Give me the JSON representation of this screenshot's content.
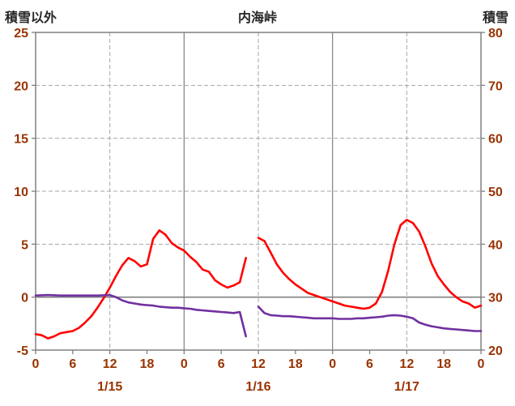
{
  "header": {
    "left": "積雪以外",
    "center": "内海峠",
    "right": "積雪"
  },
  "colors": {
    "red_series": "#FF0000",
    "purple_series": "#7030A0",
    "tick_label": "#993300",
    "grid": "#808080",
    "dashed_grid": "#a6a6a6",
    "title_text": "#262626"
  },
  "chart_data": {
    "type": "line",
    "title": "内海峠",
    "left_axis": {
      "label": "積雪以外",
      "min": -5,
      "max": 25,
      "ticks": [
        25,
        20,
        15,
        10,
        5,
        0,
        -5
      ],
      "zero_line": 0
    },
    "right_axis": {
      "label": "積雪",
      "min": 20,
      "max": 80,
      "ticks": [
        80,
        70,
        60,
        50,
        40,
        30,
        20
      ]
    },
    "x_axis": {
      "min": 0,
      "max": 72,
      "tick_interval": 6,
      "tick_labels": [
        "0",
        "6",
        "12",
        "18",
        "0",
        "6",
        "12",
        "18",
        "0",
        "6",
        "12",
        "18",
        "0"
      ],
      "solid_gridlines": [
        24,
        48
      ],
      "dashed_gridlines": [
        12,
        36,
        60
      ],
      "date_labels": [
        {
          "label": "1/15",
          "hour": 12
        },
        {
          "label": "1/16",
          "hour": 36
        },
        {
          "label": "1/17",
          "hour": 60
        }
      ]
    },
    "legend": "none",
    "grid": true,
    "series": [
      {
        "name": "積雪以外",
        "axis": "left",
        "color": "#FF0000",
        "segments": [
          [
            [
              0,
              -3.5
            ],
            [
              1,
              -3.6
            ],
            [
              2,
              -3.9
            ],
            [
              3,
              -3.7
            ],
            [
              4,
              -3.4
            ],
            [
              5,
              -3.3
            ],
            [
              6,
              -3.2
            ],
            [
              7,
              -2.9
            ],
            [
              8,
              -2.4
            ],
            [
              9,
              -1.8
            ],
            [
              10,
              -1.0
            ],
            [
              11,
              -0.1
            ],
            [
              12,
              0.9
            ],
            [
              13,
              2.0
            ],
            [
              14,
              3.0
            ],
            [
              15,
              3.7
            ],
            [
              16,
              3.4
            ],
            [
              17,
              2.9
            ],
            [
              18,
              3.1
            ],
            [
              19,
              5.5
            ],
            [
              20,
              6.3
            ],
            [
              21,
              5.9
            ],
            [
              22,
              5.1
            ],
            [
              23,
              4.7
            ],
            [
              24,
              4.4
            ],
            [
              25,
              3.8
            ],
            [
              26,
              3.3
            ],
            [
              27,
              2.6
            ],
            [
              28,
              2.4
            ],
            [
              29,
              1.6
            ],
            [
              30,
              1.2
            ],
            [
              31,
              0.9
            ],
            [
              32,
              1.1
            ],
            [
              33,
              1.4
            ],
            [
              34,
              3.7
            ]
          ],
          [
            [
              36,
              5.6
            ],
            [
              37,
              5.3
            ],
            [
              38,
              4.2
            ],
            [
              39,
              3.1
            ],
            [
              40,
              2.3
            ],
            [
              41,
              1.7
            ],
            [
              42,
              1.2
            ],
            [
              43,
              0.8
            ],
            [
              44,
              0.4
            ],
            [
              45,
              0.2
            ],
            [
              46,
              0.0
            ],
            [
              47,
              -0.2
            ],
            [
              48,
              -0.4
            ],
            [
              49,
              -0.6
            ],
            [
              50,
              -0.8
            ],
            [
              51,
              -0.9
            ],
            [
              52,
              -1.0
            ],
            [
              53,
              -1.1
            ],
            [
              54,
              -1.0
            ],
            [
              55,
              -0.6
            ],
            [
              56,
              0.5
            ],
            [
              57,
              2.5
            ],
            [
              58,
              5.0
            ],
            [
              59,
              6.8
            ],
            [
              60,
              7.3
            ],
            [
              61,
              7.0
            ],
            [
              62,
              6.2
            ],
            [
              63,
              4.8
            ],
            [
              64,
              3.2
            ],
            [
              65,
              2.0
            ],
            [
              66,
              1.2
            ],
            [
              67,
              0.5
            ],
            [
              68,
              0.0
            ],
            [
              69,
              -0.4
            ],
            [
              70,
              -0.6
            ],
            [
              71,
              -1.0
            ],
            [
              72,
              -0.8
            ]
          ]
        ]
      },
      {
        "name": "積雪",
        "axis": "right",
        "color": "#7030A0",
        "segments": [
          [
            [
              0,
              30.3
            ],
            [
              2,
              30.4
            ],
            [
              4,
              30.3
            ],
            [
              6,
              30.3
            ],
            [
              8,
              30.3
            ],
            [
              10,
              30.3
            ],
            [
              12,
              30.4
            ],
            [
              13,
              30.0
            ],
            [
              14,
              29.4
            ],
            [
              15,
              29.0
            ],
            [
              16,
              28.8
            ],
            [
              17,
              28.6
            ],
            [
              18,
              28.5
            ],
            [
              19,
              28.4
            ],
            [
              20,
              28.2
            ],
            [
              21,
              28.1
            ],
            [
              22,
              28.0
            ],
            [
              23,
              28.0
            ],
            [
              24,
              27.9
            ],
            [
              25,
              27.8
            ],
            [
              26,
              27.6
            ],
            [
              27,
              27.5
            ],
            [
              28,
              27.4
            ],
            [
              29,
              27.3
            ],
            [
              30,
              27.2
            ],
            [
              31,
              27.1
            ],
            [
              32,
              27.0
            ],
            [
              33,
              27.2
            ],
            [
              34,
              22.6
            ]
          ],
          [
            [
              36,
              28.2
            ],
            [
              37,
              27.0
            ],
            [
              38,
              26.6
            ],
            [
              39,
              26.5
            ],
            [
              40,
              26.4
            ],
            [
              41,
              26.4
            ],
            [
              42,
              26.3
            ],
            [
              43,
              26.2
            ],
            [
              44,
              26.1
            ],
            [
              45,
              26.0
            ],
            [
              46,
              26.0
            ],
            [
              47,
              26.0
            ],
            [
              48,
              26.0
            ],
            [
              49,
              25.9
            ],
            [
              50,
              25.9
            ],
            [
              51,
              25.9
            ],
            [
              52,
              26.0
            ],
            [
              53,
              26.0
            ],
            [
              54,
              26.1
            ],
            [
              55,
              26.2
            ],
            [
              56,
              26.3
            ],
            [
              57,
              26.5
            ],
            [
              58,
              26.6
            ],
            [
              59,
              26.5
            ],
            [
              60,
              26.3
            ],
            [
              61,
              26.0
            ],
            [
              62,
              25.2
            ],
            [
              63,
              24.8
            ],
            [
              64,
              24.5
            ],
            [
              65,
              24.3
            ],
            [
              66,
              24.1
            ],
            [
              67,
              24.0
            ],
            [
              68,
              23.9
            ],
            [
              69,
              23.8
            ],
            [
              70,
              23.7
            ],
            [
              71,
              23.6
            ],
            [
              72,
              23.6
            ]
          ]
        ]
      }
    ]
  }
}
